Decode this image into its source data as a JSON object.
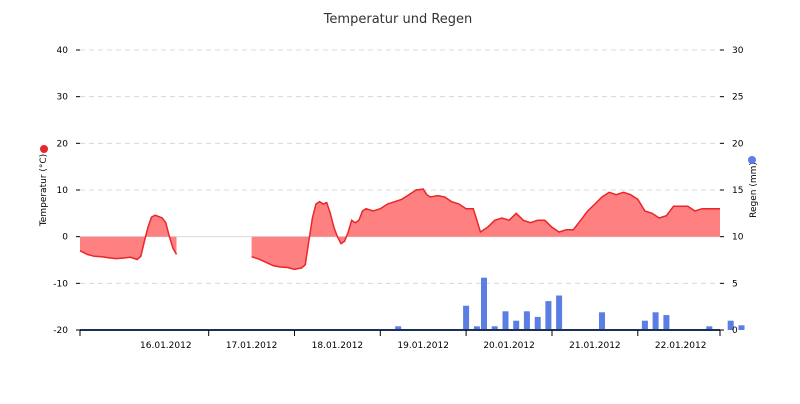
{
  "chart_data": {
    "type": "area",
    "title": "Temperatur und Regen",
    "colors": {
      "temperature_line": "#e8262b",
      "temperature_fill": "#ff8080",
      "rain_bar": "#5b7ee5",
      "grid": "#d9d9d9",
      "axis": "#1c2f55"
    },
    "grid": true,
    "x": {
      "start": "2012-01-15T12:00",
      "end": "2012-01-22T23:00",
      "tick_labels": [
        "16.01.2012",
        "17.01.2012",
        "18.01.2012",
        "19.01.2012",
        "20.01.2012",
        "21.01.2012",
        "22.01.2012"
      ]
    },
    "y_left": {
      "label": "Temperatur (°C)",
      "ylim": [
        -20,
        40
      ],
      "tick_labels": [
        "-20",
        "-10",
        "0",
        "10",
        "20",
        "30",
        "40"
      ],
      "marker_color": "#e8262b"
    },
    "y_right": {
      "label": "Regen (mm)",
      "ylim": [
        0,
        30
      ],
      "tick_labels": [
        "0",
        "5",
        "10",
        "15",
        "20",
        "25",
        "30"
      ],
      "marker_color": "#5b7ee5"
    },
    "series": [
      {
        "type": "area",
        "axis": "left",
        "segments": [
          [
            [
              "2012-01-15T12:00",
              -3.0
            ],
            [
              "2012-01-15T14:00",
              -3.8
            ],
            [
              "2012-01-15T16:00",
              -4.2
            ],
            [
              "2012-01-15T18:00",
              -4.3
            ],
            [
              "2012-01-15T20:00",
              -4.5
            ],
            [
              "2012-01-15T22:00",
              -4.7
            ],
            [
              "2012-01-16T00:00",
              -4.6
            ],
            [
              "2012-01-16T02:00",
              -4.4
            ],
            [
              "2012-01-16T04:00",
              -4.9
            ],
            [
              "2012-01-16T05:00",
              -4.2
            ],
            [
              "2012-01-16T06:00",
              -1.0
            ],
            [
              "2012-01-16T07:00",
              2.0
            ],
            [
              "2012-01-16T08:00",
              4.2
            ],
            [
              "2012-01-16T09:00",
              4.6
            ],
            [
              "2012-01-16T10:00",
              4.3
            ],
            [
              "2012-01-16T11:00",
              4.0
            ],
            [
              "2012-01-16T12:00",
              3.0
            ],
            [
              "2012-01-16T13:00",
              0.0
            ],
            [
              "2012-01-16T14:00",
              -2.5
            ],
            [
              "2012-01-16T15:00",
              -3.8
            ]
          ],
          [
            [
              "2012-01-17T12:00",
              -4.3
            ],
            [
              "2012-01-17T14:00",
              -4.8
            ],
            [
              "2012-01-17T16:00",
              -5.5
            ],
            [
              "2012-01-17T18:00",
              -6.2
            ],
            [
              "2012-01-17T20:00",
              -6.5
            ],
            [
              "2012-01-17T22:00",
              -6.6
            ],
            [
              "2012-01-18T00:00",
              -7.0
            ],
            [
              "2012-01-18T02:00",
              -6.7
            ],
            [
              "2012-01-18T03:00",
              -6.0
            ],
            [
              "2012-01-18T04:00",
              -1.0
            ],
            [
              "2012-01-18T05:00",
              4.0
            ],
            [
              "2012-01-18T06:00",
              7.0
            ],
            [
              "2012-01-18T07:00",
              7.5
            ],
            [
              "2012-01-18T08:00",
              7.0
            ],
            [
              "2012-01-18T09:00",
              7.3
            ],
            [
              "2012-01-18T10:00",
              5.0
            ],
            [
              "2012-01-18T11:00",
              2.0
            ],
            [
              "2012-01-18T12:00",
              0.0
            ],
            [
              "2012-01-18T13:00",
              -1.5
            ],
            [
              "2012-01-18T14:00",
              -1.0
            ],
            [
              "2012-01-18T15:00",
              1.0
            ],
            [
              "2012-01-18T16:00",
              3.5
            ],
            [
              "2012-01-18T17:00",
              3.0
            ],
            [
              "2012-01-18T18:00",
              3.5
            ],
            [
              "2012-01-18T19:00",
              5.5
            ],
            [
              "2012-01-18T20:00",
              6.0
            ],
            [
              "2012-01-18T22:00",
              5.5
            ],
            [
              "2012-01-19T00:00",
              6.0
            ],
            [
              "2012-01-19T02:00",
              7.0
            ],
            [
              "2012-01-19T04:00",
              7.5
            ],
            [
              "2012-01-19T06:00",
              8.0
            ],
            [
              "2012-01-19T08:00",
              9.0
            ],
            [
              "2012-01-19T10:00",
              10.0
            ],
            [
              "2012-01-19T12:00",
              10.2
            ],
            [
              "2012-01-19T13:00",
              9.0
            ],
            [
              "2012-01-19T14:00",
              8.5
            ],
            [
              "2012-01-19T16:00",
              8.8
            ],
            [
              "2012-01-19T18:00",
              8.5
            ],
            [
              "2012-01-19T20:00",
              7.5
            ],
            [
              "2012-01-19T22:00",
              7.0
            ],
            [
              "2012-01-20T00:00",
              6.0
            ],
            [
              "2012-01-20T02:00",
              6.0
            ],
            [
              "2012-01-20T03:00",
              3.5
            ],
            [
              "2012-01-20T04:00",
              1.0
            ],
            [
              "2012-01-20T06:00",
              2.0
            ],
            [
              "2012-01-20T08:00",
              3.5
            ],
            [
              "2012-01-20T10:00",
              4.0
            ],
            [
              "2012-01-20T12:00",
              3.5
            ],
            [
              "2012-01-20T14:00",
              5.0
            ],
            [
              "2012-01-20T16:00",
              3.5
            ],
            [
              "2012-01-20T18:00",
              3.0
            ],
            [
              "2012-01-20T20:00",
              3.5
            ],
            [
              "2012-01-20T22:00",
              3.5
            ],
            [
              "2012-01-21T00:00",
              2.0
            ],
            [
              "2012-01-21T02:00",
              1.0
            ],
            [
              "2012-01-21T04:00",
              1.5
            ],
            [
              "2012-01-21T06:00",
              1.5
            ],
            [
              "2012-01-21T08:00",
              3.5
            ],
            [
              "2012-01-21T10:00",
              5.5
            ],
            [
              "2012-01-21T12:00",
              7.0
            ],
            [
              "2012-01-21T14:00",
              8.5
            ],
            [
              "2012-01-21T16:00",
              9.5
            ],
            [
              "2012-01-21T18:00",
              9.0
            ],
            [
              "2012-01-21T20:00",
              9.5
            ],
            [
              "2012-01-21T22:00",
              9.0
            ],
            [
              "2012-01-22T00:00",
              8.0
            ],
            [
              "2012-01-22T02:00",
              5.5
            ],
            [
              "2012-01-22T04:00",
              5.0
            ],
            [
              "2012-01-22T06:00",
              4.0
            ],
            [
              "2012-01-22T08:00",
              4.5
            ],
            [
              "2012-01-22T10:00",
              6.5
            ],
            [
              "2012-01-22T12:00",
              6.5
            ],
            [
              "2012-01-22T14:00",
              6.5
            ],
            [
              "2012-01-22T16:00",
              5.5
            ],
            [
              "2012-01-22T18:00",
              6.0
            ],
            [
              "2012-01-22T20:00",
              6.0
            ],
            [
              "2012-01-22T22:00",
              6.0
            ],
            [
              "2012-01-22T23:00",
              6.0
            ]
          ]
        ]
      },
      {
        "type": "bar",
        "axis": "right",
        "points": [
          [
            "2012-01-19T05:00",
            0.4
          ],
          [
            "2012-01-20T00:00",
            2.6
          ],
          [
            "2012-01-20T03:00",
            0.4
          ],
          [
            "2012-01-20T05:00",
            5.6
          ],
          [
            "2012-01-20T08:00",
            0.4
          ],
          [
            "2012-01-20T11:00",
            2.0
          ],
          [
            "2012-01-20T14:00",
            1.0
          ],
          [
            "2012-01-20T17:00",
            2.0
          ],
          [
            "2012-01-20T20:00",
            1.4
          ],
          [
            "2012-01-20T23:00",
            3.1
          ],
          [
            "2012-01-21T02:00",
            3.7
          ],
          [
            "2012-01-21T14:00",
            1.9
          ],
          [
            "2012-01-22T02:00",
            1.0
          ],
          [
            "2012-01-22T05:00",
            1.9
          ],
          [
            "2012-01-22T08:00",
            1.6
          ],
          [
            "2012-01-22T20:00",
            0.4
          ],
          [
            "2012-01-23T02:00",
            1.0
          ],
          [
            "2012-01-23T05:00",
            0.5
          ]
        ]
      }
    ]
  }
}
